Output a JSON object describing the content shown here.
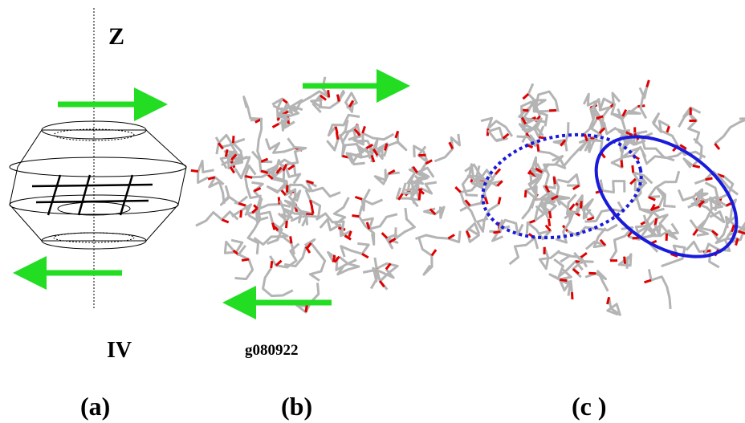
{
  "panel_a": {
    "axis_label": "Z",
    "label": "IV",
    "caption": "(a)"
  },
  "panel_b": {
    "label": "g080922",
    "caption": "(b)"
  },
  "panel_c": {
    "caption": "(c )"
  }
}
